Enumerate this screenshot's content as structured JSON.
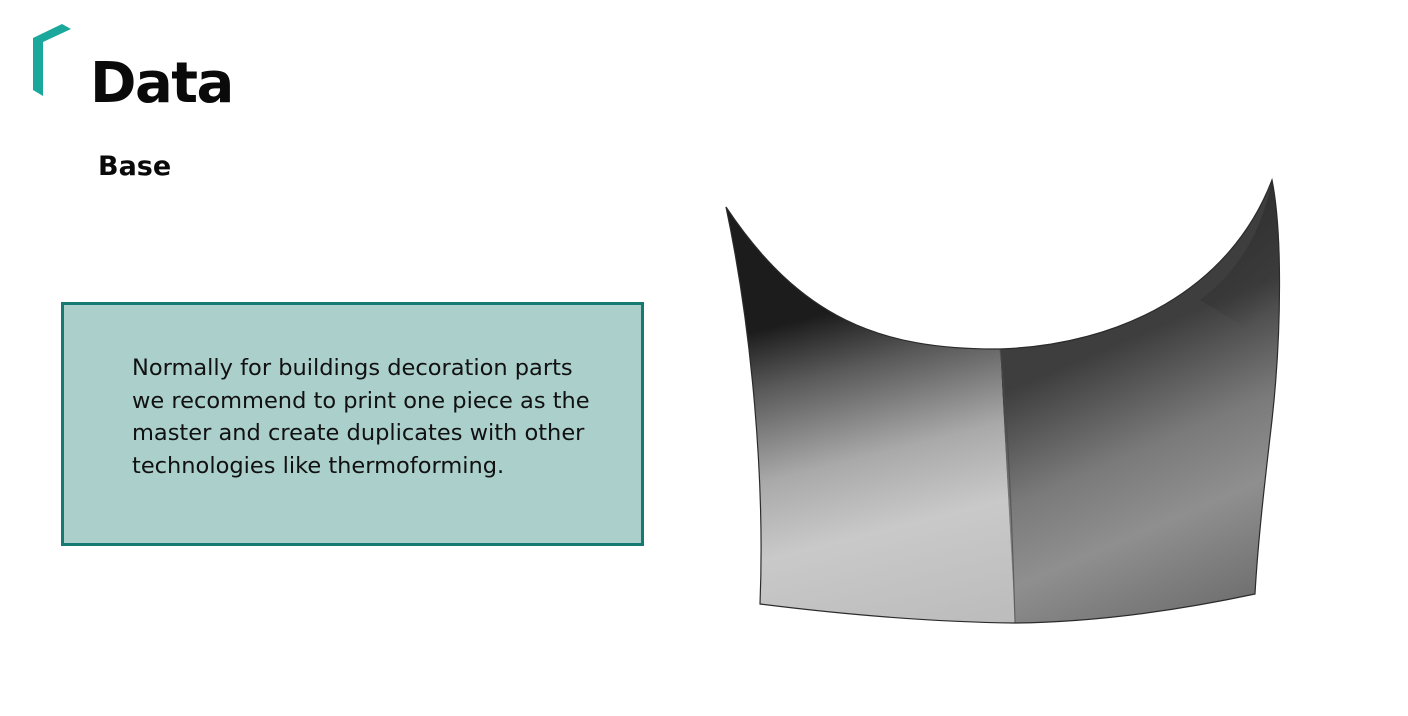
{
  "slide": {
    "title": "Data",
    "subtitle": "Base",
    "note": {
      "text": "Normally for buildings decoration parts we recommend to print one piece as the master and create duplicates with other technologies like thermoforming."
    },
    "colors": {
      "accent": "#1aa89c",
      "box_fill": "#abd0cc",
      "box_border": "#177a72",
      "title_text": "#0a0a0a"
    }
  }
}
